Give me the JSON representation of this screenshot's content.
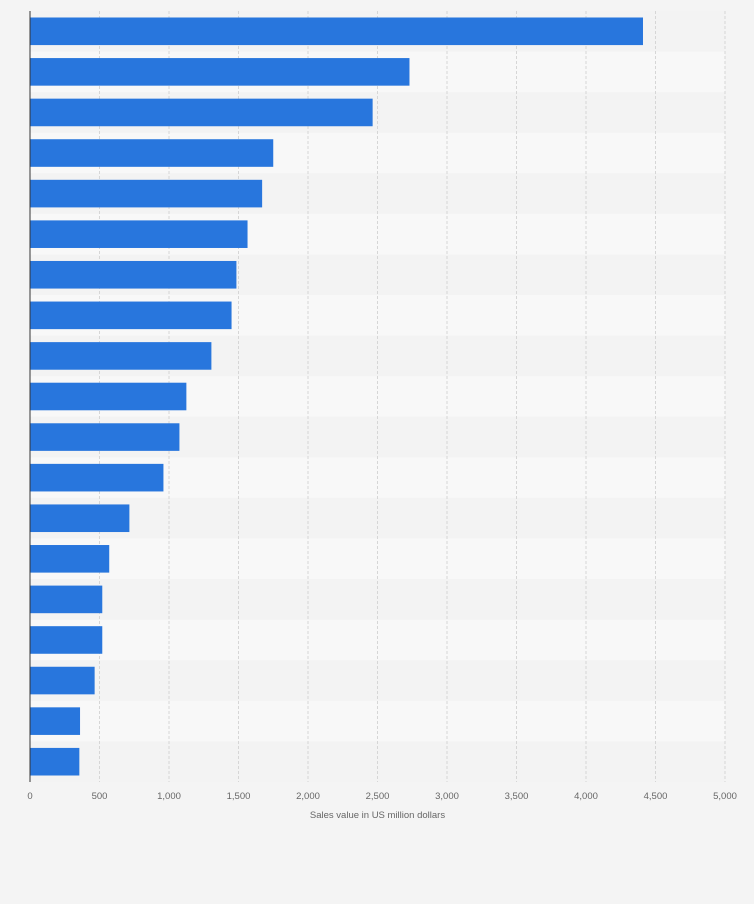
{
  "chart_data": {
    "type": "bar",
    "orientation": "horizontal",
    "title": "",
    "xlabel": "Sales value in US million dollars",
    "ylabel": "",
    "xlim": [
      0,
      5000
    ],
    "x_ticks": [
      0,
      500,
      1000,
      1500,
      2000,
      2500,
      3000,
      3500,
      4000,
      4500,
      5000
    ],
    "x_tick_labels": [
      "0",
      "500",
      "1,000",
      "1,500",
      "2,000",
      "2,500",
      "3,000",
      "3,500",
      "4,000",
      "4,500",
      "5,000"
    ],
    "grid": true,
    "legend": "none",
    "bar_color": "#2876dd",
    "values": [
      4410,
      2730,
      2465,
      1750,
      1670,
      1565,
      1485,
      1450,
      1305,
      1125,
      1075,
      960,
      715,
      570,
      520,
      520,
      465,
      360,
      355
    ]
  }
}
